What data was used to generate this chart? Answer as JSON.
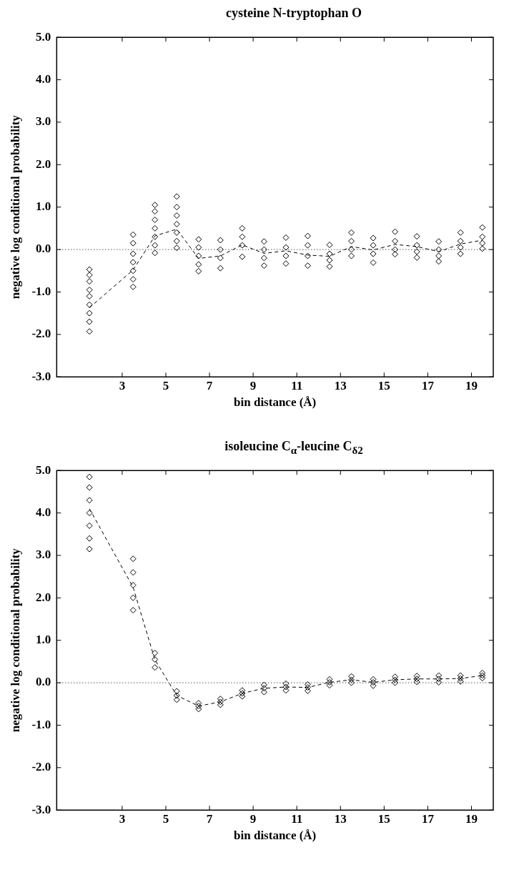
{
  "chart_data": [
    {
      "type": "scatter",
      "title": "cysteine N-tryptophan O",
      "xlabel": "bin distance (Å)",
      "ylabel": "negative log conditional probability",
      "xlim": [
        0,
        20
      ],
      "xticks": [
        3,
        5,
        7,
        9,
        11,
        13,
        15,
        17,
        19
      ],
      "ylim": [
        -3,
        5
      ],
      "yticks": [
        {
          "value": -3,
          "label": "-3.0"
        },
        {
          "value": -2,
          "label": "-2.0"
        },
        {
          "value": -1,
          "label": "-1.0"
        },
        {
          "value": 0,
          "label": "0.0"
        },
        {
          "value": 1,
          "label": "1.0"
        },
        {
          "value": 2,
          "label": "2.0"
        },
        {
          "value": 3,
          "label": "3.0"
        },
        {
          "value": 4,
          "label": "4.0"
        },
        {
          "value": 5,
          "label": "5.0"
        }
      ],
      "ref_lines": [
        {
          "axis": "y",
          "value": 0,
          "color": "#000000",
          "line_style": "dotted"
        }
      ],
      "series": [
        {
          "type": "scatter",
          "color": "#000000",
          "marker": "diamond",
          "x": [
            1.5,
            1.5,
            1.5,
            1.5,
            1.5,
            1.5,
            1.5,
            1.5,
            1.5,
            3.5,
            3.5,
            3.5,
            3.5,
            3.5,
            3.5,
            3.5,
            4.5,
            4.5,
            4.5,
            4.5,
            4.5,
            4.5,
            4.5,
            5.5,
            5.5,
            5.5,
            5.5,
            5.5,
            5.5,
            5.5,
            6.5,
            6.5,
            6.5,
            6.5,
            6.5,
            7.5,
            7.5,
            7.5,
            7.5,
            8.5,
            8.5,
            8.5,
            8.5,
            9.5,
            9.5,
            9.5,
            9.5,
            10.5,
            10.5,
            10.5,
            10.5,
            11.5,
            11.5,
            11.5,
            11.5,
            12.5,
            12.5,
            12.5,
            12.5,
            13.5,
            13.5,
            13.5,
            13.5,
            14.5,
            14.5,
            14.5,
            14.5,
            15.5,
            15.5,
            15.5,
            15.5,
            16.5,
            16.5,
            16.5,
            16.5,
            17.5,
            17.5,
            17.5,
            17.5,
            18.5,
            18.5,
            18.5,
            18.5,
            19.5,
            19.5,
            19.5,
            19.5
          ],
          "values": [
            -0.47,
            -0.6,
            -0.75,
            -0.95,
            -1.1,
            -1.3,
            -1.5,
            -1.7,
            -1.93,
            0.35,
            0.15,
            -0.1,
            -0.3,
            -0.5,
            -0.7,
            -0.88,
            1.05,
            0.9,
            0.7,
            0.5,
            0.3,
            0.1,
            -0.08,
            1.25,
            1.0,
            0.8,
            0.6,
            0.4,
            0.2,
            0.04,
            0.24,
            0.05,
            -0.15,
            -0.35,
            -0.51,
            0.22,
            0.0,
            -0.2,
            -0.44,
            0.5,
            0.3,
            0.1,
            -0.17,
            0.19,
            0.0,
            -0.2,
            -0.38,
            0.28,
            0.05,
            -0.15,
            -0.33,
            0.32,
            0.1,
            -0.15,
            -0.38,
            0.11,
            -0.1,
            -0.25,
            -0.4,
            0.4,
            0.2,
            0.0,
            -0.15,
            0.27,
            0.1,
            -0.1,
            -0.31,
            0.42,
            0.2,
            0.0,
            -0.11,
            0.31,
            0.1,
            -0.05,
            -0.19,
            0.19,
            0.0,
            -0.15,
            -0.28,
            0.4,
            0.2,
            0.05,
            -0.1,
            0.52,
            0.3,
            0.15,
            0.02
          ]
        },
        {
          "type": "line",
          "color": "#000000",
          "marker": "none",
          "line_style": "dashed",
          "x": [
            1.5,
            3.5,
            4.5,
            5.5,
            6.5,
            7.5,
            8.5,
            9.5,
            10.5,
            11.5,
            12.5,
            13.5,
            14.5,
            15.5,
            16.5,
            17.5,
            18.5,
            19.5
          ],
          "values": [
            -1.37,
            -0.48,
            0.32,
            0.48,
            -0.21,
            -0.15,
            0.11,
            -0.09,
            -0.03,
            -0.13,
            -0.16,
            0.07,
            -0.01,
            0.12,
            0.07,
            -0.05,
            0.13,
            0.22
          ]
        }
      ]
    },
    {
      "type": "scatter",
      "title": "isoleucine C$_{α}$-leucine C$_{δ2}$",
      "xlabel": "bin distance (Å)",
      "ylabel": "negative log conditional probability",
      "xlim": [
        0,
        20
      ],
      "xticks": [
        3,
        5,
        7,
        9,
        11,
        13,
        15,
        17,
        19
      ],
      "ylim": [
        -3,
        5
      ],
      "yticks": [
        {
          "value": -3,
          "label": "-3.0"
        },
        {
          "value": -2,
          "label": "-2.0"
        },
        {
          "value": -1,
          "label": "-1.0"
        },
        {
          "value": 0,
          "label": "0.0"
        },
        {
          "value": 1,
          "label": "1.0"
        },
        {
          "value": 2,
          "label": "2.0"
        },
        {
          "value": 3,
          "label": "3.0"
        },
        {
          "value": 4,
          "label": "4.0"
        },
        {
          "value": 5,
          "label": "5.0"
        }
      ],
      "ref_lines": [
        {
          "axis": "y",
          "value": 0,
          "color": "#000000",
          "line_style": "dotted"
        }
      ],
      "series": [
        {
          "type": "scatter",
          "color": "#000000",
          "marker": "diamond",
          "x": [
            1.5,
            1.5,
            1.5,
            1.5,
            1.5,
            1.5,
            1.5,
            3.5,
            3.5,
            3.5,
            3.5,
            3.5,
            4.5,
            4.5,
            4.5,
            5.5,
            5.5,
            5.5,
            6.5,
            6.5,
            6.5,
            7.5,
            7.5,
            7.5,
            8.5,
            8.5,
            8.5,
            9.5,
            9.5,
            9.5,
            10.5,
            10.5,
            10.5,
            11.5,
            11.5,
            11.5,
            12.5,
            12.5,
            12.5,
            13.5,
            13.5,
            13.5,
            14.5,
            14.5,
            14.5,
            15.5,
            15.5,
            15.5,
            16.5,
            16.5,
            16.5,
            17.5,
            17.5,
            17.5,
            18.5,
            18.5,
            18.5,
            19.5,
            19.5,
            19.5
          ],
          "values": [
            4.85,
            4.6,
            4.3,
            4.0,
            3.7,
            3.4,
            3.15,
            2.92,
            2.6,
            2.3,
            2.0,
            1.71,
            0.7,
            0.55,
            0.36,
            -0.2,
            -0.3,
            -0.4,
            -0.48,
            -0.55,
            -0.62,
            -0.38,
            -0.45,
            -0.52,
            -0.18,
            -0.25,
            -0.32,
            -0.05,
            -0.13,
            -0.22,
            -0.02,
            -0.1,
            -0.18,
            -0.04,
            -0.11,
            -0.19,
            0.08,
            0.01,
            -0.06,
            0.15,
            0.07,
            0.0,
            0.08,
            0.01,
            -0.07,
            0.14,
            0.07,
            0.0,
            0.16,
            0.09,
            0.02,
            0.17,
            0.09,
            0.01,
            0.17,
            0.1,
            0.03,
            0.23,
            0.17,
            0.11
          ]
        },
        {
          "type": "line",
          "color": "#000000",
          "marker": "none",
          "line_style": "dashed",
          "x": [
            1.5,
            3.5,
            4.5,
            5.5,
            6.5,
            7.5,
            8.5,
            9.5,
            10.5,
            11.5,
            12.5,
            13.5,
            14.5,
            15.5,
            16.5,
            17.5,
            18.5,
            19.5
          ],
          "values": [
            4.1,
            2.25,
            0.54,
            -0.3,
            -0.55,
            -0.45,
            -0.25,
            -0.13,
            -0.1,
            -0.11,
            0.01,
            0.07,
            0.01,
            0.07,
            0.09,
            0.09,
            0.1,
            0.17
          ]
        }
      ]
    }
  ]
}
